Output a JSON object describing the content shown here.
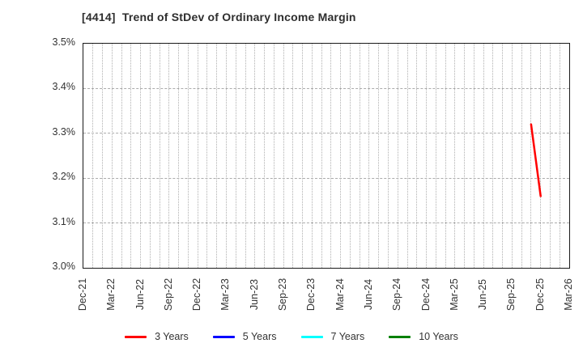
{
  "chart_data": {
    "type": "line",
    "title": "[4414]  Trend of StDev of Ordinary Income Margin",
    "xlabel": "",
    "ylabel": "",
    "ylim": [
      3.0,
      3.5
    ],
    "ytick_values": [
      3.0,
      3.1,
      3.2,
      3.3,
      3.4,
      3.5
    ],
    "ytick_labels": [
      "3.0%",
      "3.1%",
      "3.2%",
      "3.3%",
      "3.4%",
      "3.5%"
    ],
    "xtick_labels": [
      "Dec-21",
      "Mar-22",
      "Jun-22",
      "Sep-22",
      "Dec-22",
      "Mar-23",
      "Jun-23",
      "Sep-23",
      "Dec-23",
      "Mar-24",
      "Jun-24",
      "Sep-24",
      "Dec-24",
      "Mar-25",
      "Jun-25",
      "Sep-25",
      "Dec-25",
      "Mar-26"
    ],
    "x_months_total": 51,
    "months_per_xtick": 3,
    "grid": {
      "vertical": "dotted, monthly",
      "horizontal": "dashed, every 0.1%"
    },
    "legend_position": "bottom-center",
    "series": [
      {
        "name": "3 Years",
        "color": "#ff0000",
        "points": [
          {
            "x_label": "Nov-25",
            "x_month_index": 47,
            "y": 3.32
          },
          {
            "x_label": "Dec-25",
            "x_month_index": 48,
            "y": 3.16
          }
        ]
      },
      {
        "name": "5 Years",
        "color": "#0000ff",
        "points": []
      },
      {
        "name": "7 Years",
        "color": "#00ffff",
        "points": []
      },
      {
        "name": "10 Years",
        "color": "#008000",
        "points": []
      }
    ]
  },
  "palette": {
    "background": "#ffffff",
    "plot_border": "#1a1a1a",
    "grid_line": "#b0b0b0",
    "title_text": "#2e2e2e",
    "tick_text": "#333333"
  }
}
